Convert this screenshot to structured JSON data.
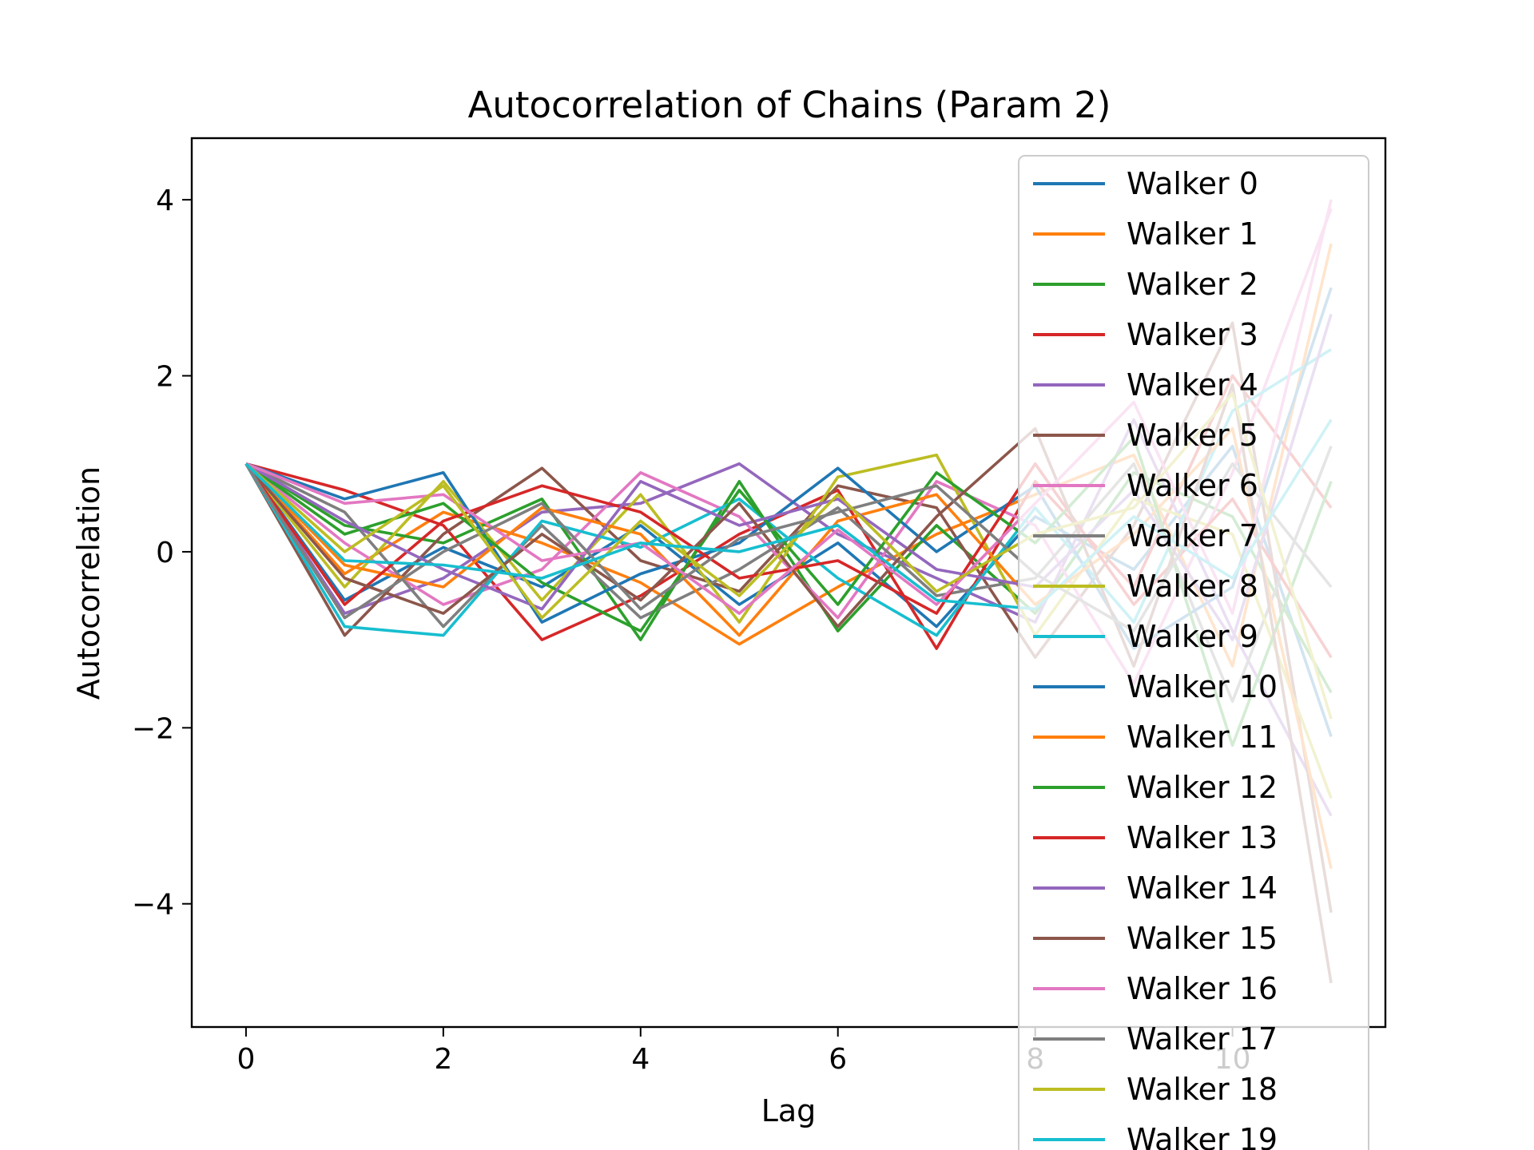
{
  "chart_data": {
    "type": "line",
    "title": "Autocorrelation of Chains (Param 2)",
    "xlabel": "Lag",
    "ylabel": "Autocorrelation",
    "xlim": [
      -0.55,
      11.55
    ],
    "ylim": [
      -5.4,
      4.7
    ],
    "xticks": [
      0,
      2,
      4,
      6,
      8,
      10
    ],
    "yticks": [
      -4,
      -2,
      0,
      2,
      4
    ],
    "xtick_labels": [
      "0",
      "2",
      "4",
      "6",
      "8",
      "10"
    ],
    "ytick_labels": [
      "−4",
      "−2",
      "0",
      "2",
      "4"
    ],
    "x": [
      0,
      1,
      2,
      3,
      4,
      5,
      6,
      7,
      8,
      9,
      10,
      11
    ],
    "grid": false,
    "legend_position": "upper-right",
    "palette": [
      "#1f77b4",
      "#ff7f0e",
      "#2ca02c",
      "#d62728",
      "#9467bd",
      "#8c564b",
      "#e377c2",
      "#7f7f7f",
      "#bcbd22",
      "#17becf"
    ],
    "series": [
      {
        "name": "Walker 0",
        "values": [
          1.0,
          -0.55,
          0.05,
          -0.4,
          0.3,
          -0.6,
          0.1,
          -0.85,
          0.4,
          -0.2,
          1.2,
          -2.1
        ]
      },
      {
        "name": "Walker 1",
        "values": [
          1.0,
          -0.25,
          0.45,
          0.1,
          -0.35,
          -1.05,
          -0.4,
          0.2,
          0.65,
          1.1,
          -1.3,
          3.5
        ]
      },
      {
        "name": "Walker 2",
        "values": [
          1.0,
          0.3,
          0.1,
          0.6,
          -1.0,
          0.8,
          -0.9,
          0.3,
          -0.7,
          0.9,
          0.4,
          -1.6
        ]
      },
      {
        "name": "Walker 3",
        "values": [
          1.0,
          0.7,
          0.3,
          -1.0,
          -0.5,
          0.2,
          0.7,
          -1.1,
          0.8,
          -0.4,
          2.0,
          0.5
        ]
      },
      {
        "name": "Walker 4",
        "values": [
          1.0,
          -0.7,
          -0.3,
          0.45,
          0.55,
          1.0,
          0.2,
          -0.3,
          -0.8,
          1.5,
          -0.9,
          -3.0
        ]
      },
      {
        "name": "Walker 5",
        "values": [
          1.0,
          -0.95,
          0.2,
          0.95,
          -0.1,
          -0.45,
          0.75,
          0.5,
          -1.2,
          0.3,
          2.6,
          -4.1
        ]
      },
      {
        "name": "Walker 6",
        "values": [
          1.0,
          0.1,
          -0.6,
          -0.2,
          0.9,
          0.4,
          -0.75,
          0.8,
          0.3,
          -1.5,
          0.9,
          3.9
        ]
      },
      {
        "name": "Walker 7",
        "values": [
          1.0,
          0.45,
          -0.85,
          0.3,
          -0.75,
          -0.2,
          0.5,
          -0.5,
          -0.3,
          1.0,
          -1.7,
          1.2
        ]
      },
      {
        "name": "Walker 8",
        "values": [
          1.0,
          -0.4,
          0.8,
          -0.55,
          0.65,
          -0.8,
          0.85,
          1.1,
          -0.95,
          0.6,
          0.2,
          -2.8
        ]
      },
      {
        "name": "Walker 9",
        "values": [
          1.0,
          -0.85,
          -0.95,
          0.35,
          0.05,
          0.6,
          -0.3,
          -0.95,
          0.5,
          -0.8,
          1.6,
          2.3
        ]
      },
      {
        "name": "Walker 10",
        "values": [
          1.0,
          0.6,
          0.9,
          -0.8,
          -0.25,
          0.1,
          0.95,
          0.0,
          0.75,
          -1.1,
          -0.4,
          3.0
        ]
      },
      {
        "name": "Walker 11",
        "values": [
          1.0,
          -0.15,
          -0.4,
          0.5,
          0.2,
          -0.95,
          0.35,
          0.65,
          -0.6,
          0.2,
          1.4,
          -3.6
        ]
      },
      {
        "name": "Walker 12",
        "values": [
          1.0,
          0.2,
          0.55,
          -0.35,
          -0.9,
          0.7,
          -0.6,
          0.9,
          0.1,
          1.3,
          -2.2,
          0.8
        ]
      },
      {
        "name": "Walker 13",
        "values": [
          1.0,
          -0.6,
          0.35,
          0.75,
          0.45,
          -0.3,
          -0.1,
          -0.7,
          1.0,
          -0.6,
          0.6,
          -1.2
        ]
      },
      {
        "name": "Walker 14",
        "values": [
          1.0,
          0.35,
          -0.2,
          -0.65,
          0.8,
          0.3,
          0.6,
          -0.2,
          -0.4,
          0.7,
          -1.0,
          2.7
        ]
      },
      {
        "name": "Walker 15",
        "values": [
          1.0,
          -0.3,
          -0.7,
          0.2,
          -0.55,
          0.55,
          -0.85,
          0.4,
          1.4,
          -1.3,
          1.9,
          -4.9
        ]
      },
      {
        "name": "Walker 16",
        "values": [
          1.0,
          0.55,
          0.65,
          -0.1,
          0.1,
          -0.7,
          0.25,
          -0.6,
          0.55,
          1.7,
          -0.7,
          4.0
        ]
      },
      {
        "name": "Walker 17",
        "values": [
          1.0,
          -0.75,
          0.0,
          0.55,
          -0.65,
          0.15,
          0.45,
          0.75,
          -0.25,
          -0.9,
          1.0,
          -0.4
        ]
      },
      {
        "name": "Walker 18",
        "values": [
          1.0,
          0.0,
          0.75,
          -0.75,
          0.35,
          -0.5,
          0.65,
          -0.45,
          0.2,
          0.5,
          1.8,
          -1.9
        ]
      },
      {
        "name": "Walker 19",
        "values": [
          1.0,
          -0.1,
          -0.15,
          -0.3,
          0.1,
          0.0,
          0.3,
          -0.55,
          -0.65,
          0.4,
          -0.3,
          1.5
        ]
      }
    ]
  }
}
